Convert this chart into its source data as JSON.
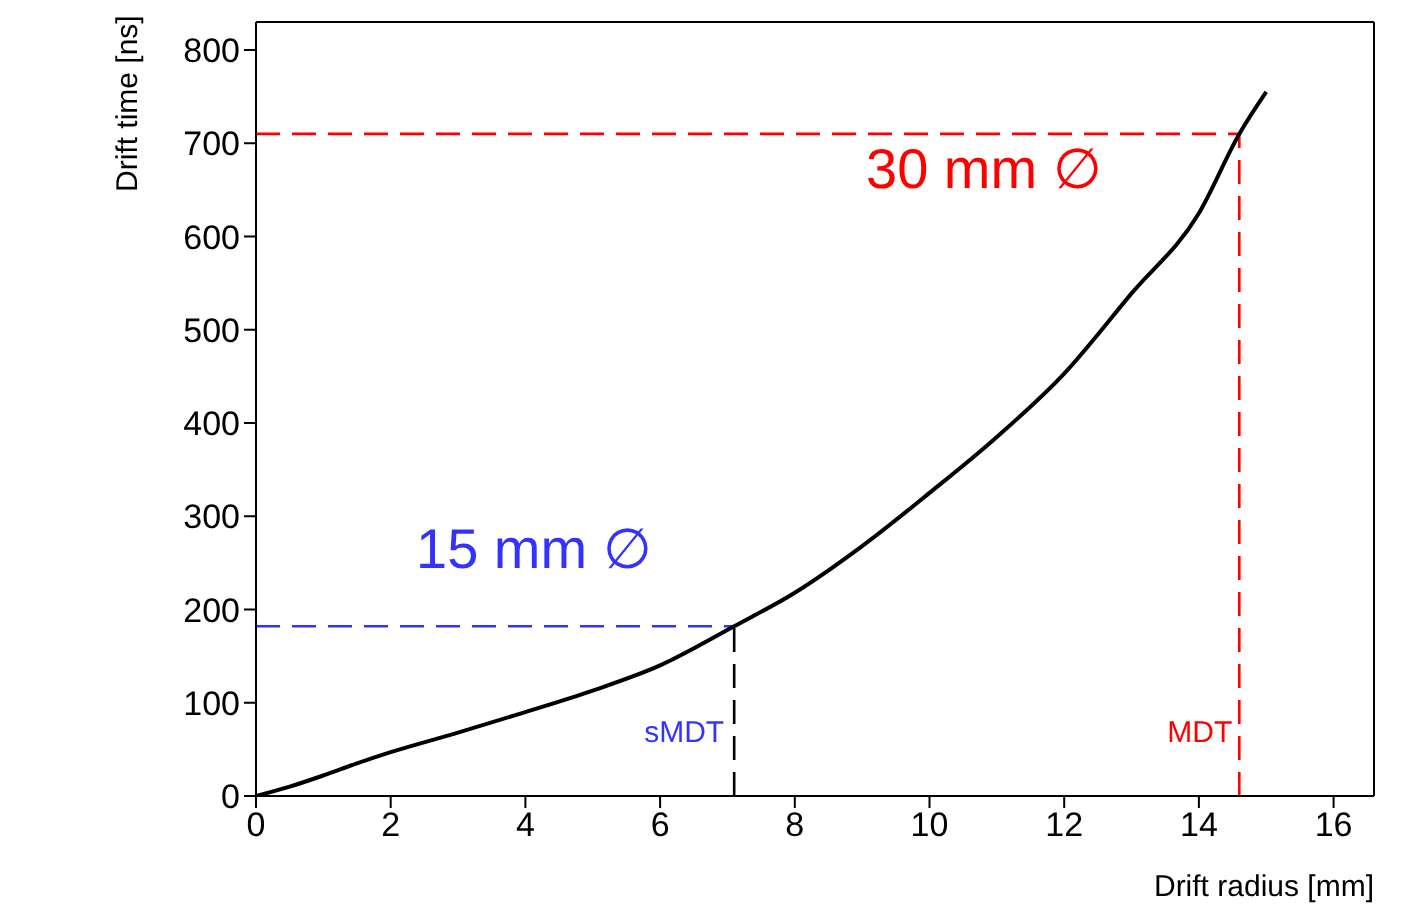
{
  "chart_data": {
    "type": "line",
    "xlabel": "Drift radius [mm]",
    "ylabel": "Drift time [ns]",
    "x": [
      0,
      0.5,
      1,
      1.5,
      2,
      3,
      4,
      5,
      6,
      7.1,
      8,
      9,
      10,
      11,
      12,
      13,
      14,
      14.6,
      15
    ],
    "series": [
      {
        "color": "#000000",
        "values": [
          0,
          10,
          22,
          35,
          47,
          68,
          90,
          113,
          140,
          182,
          218,
          268,
          325,
          385,
          453,
          539,
          625,
          710,
          755
        ]
      }
    ],
    "xlim": [
      0,
      16.6
    ],
    "xticks": [
      0,
      2,
      4,
      6,
      8,
      10,
      12,
      14,
      16
    ],
    "ylim": [
      0,
      830
    ],
    "yticks": [
      0,
      100,
      200,
      300,
      400,
      500,
      600,
      700,
      800
    ],
    "grid": false,
    "marker": "none",
    "line_style": "solid",
    "ref_lines": [
      {
        "axis": "y",
        "value": 182,
        "color": "#3333ff",
        "line_style": "dashed"
      },
      {
        "axis": "x",
        "value": 7.1,
        "label": "sMDT",
        "color": "#000000",
        "line_style": "dashed"
      },
      {
        "axis": "y",
        "value": 710,
        "color": "#ff0000",
        "line_style": "dashed"
      },
      {
        "axis": "x",
        "value": 14.6,
        "label": "MDT",
        "color": "#ff0000",
        "line_style": "dashed"
      }
    ],
    "annotations": [
      "15 mm ∅",
      "30 mm ∅"
    ]
  }
}
